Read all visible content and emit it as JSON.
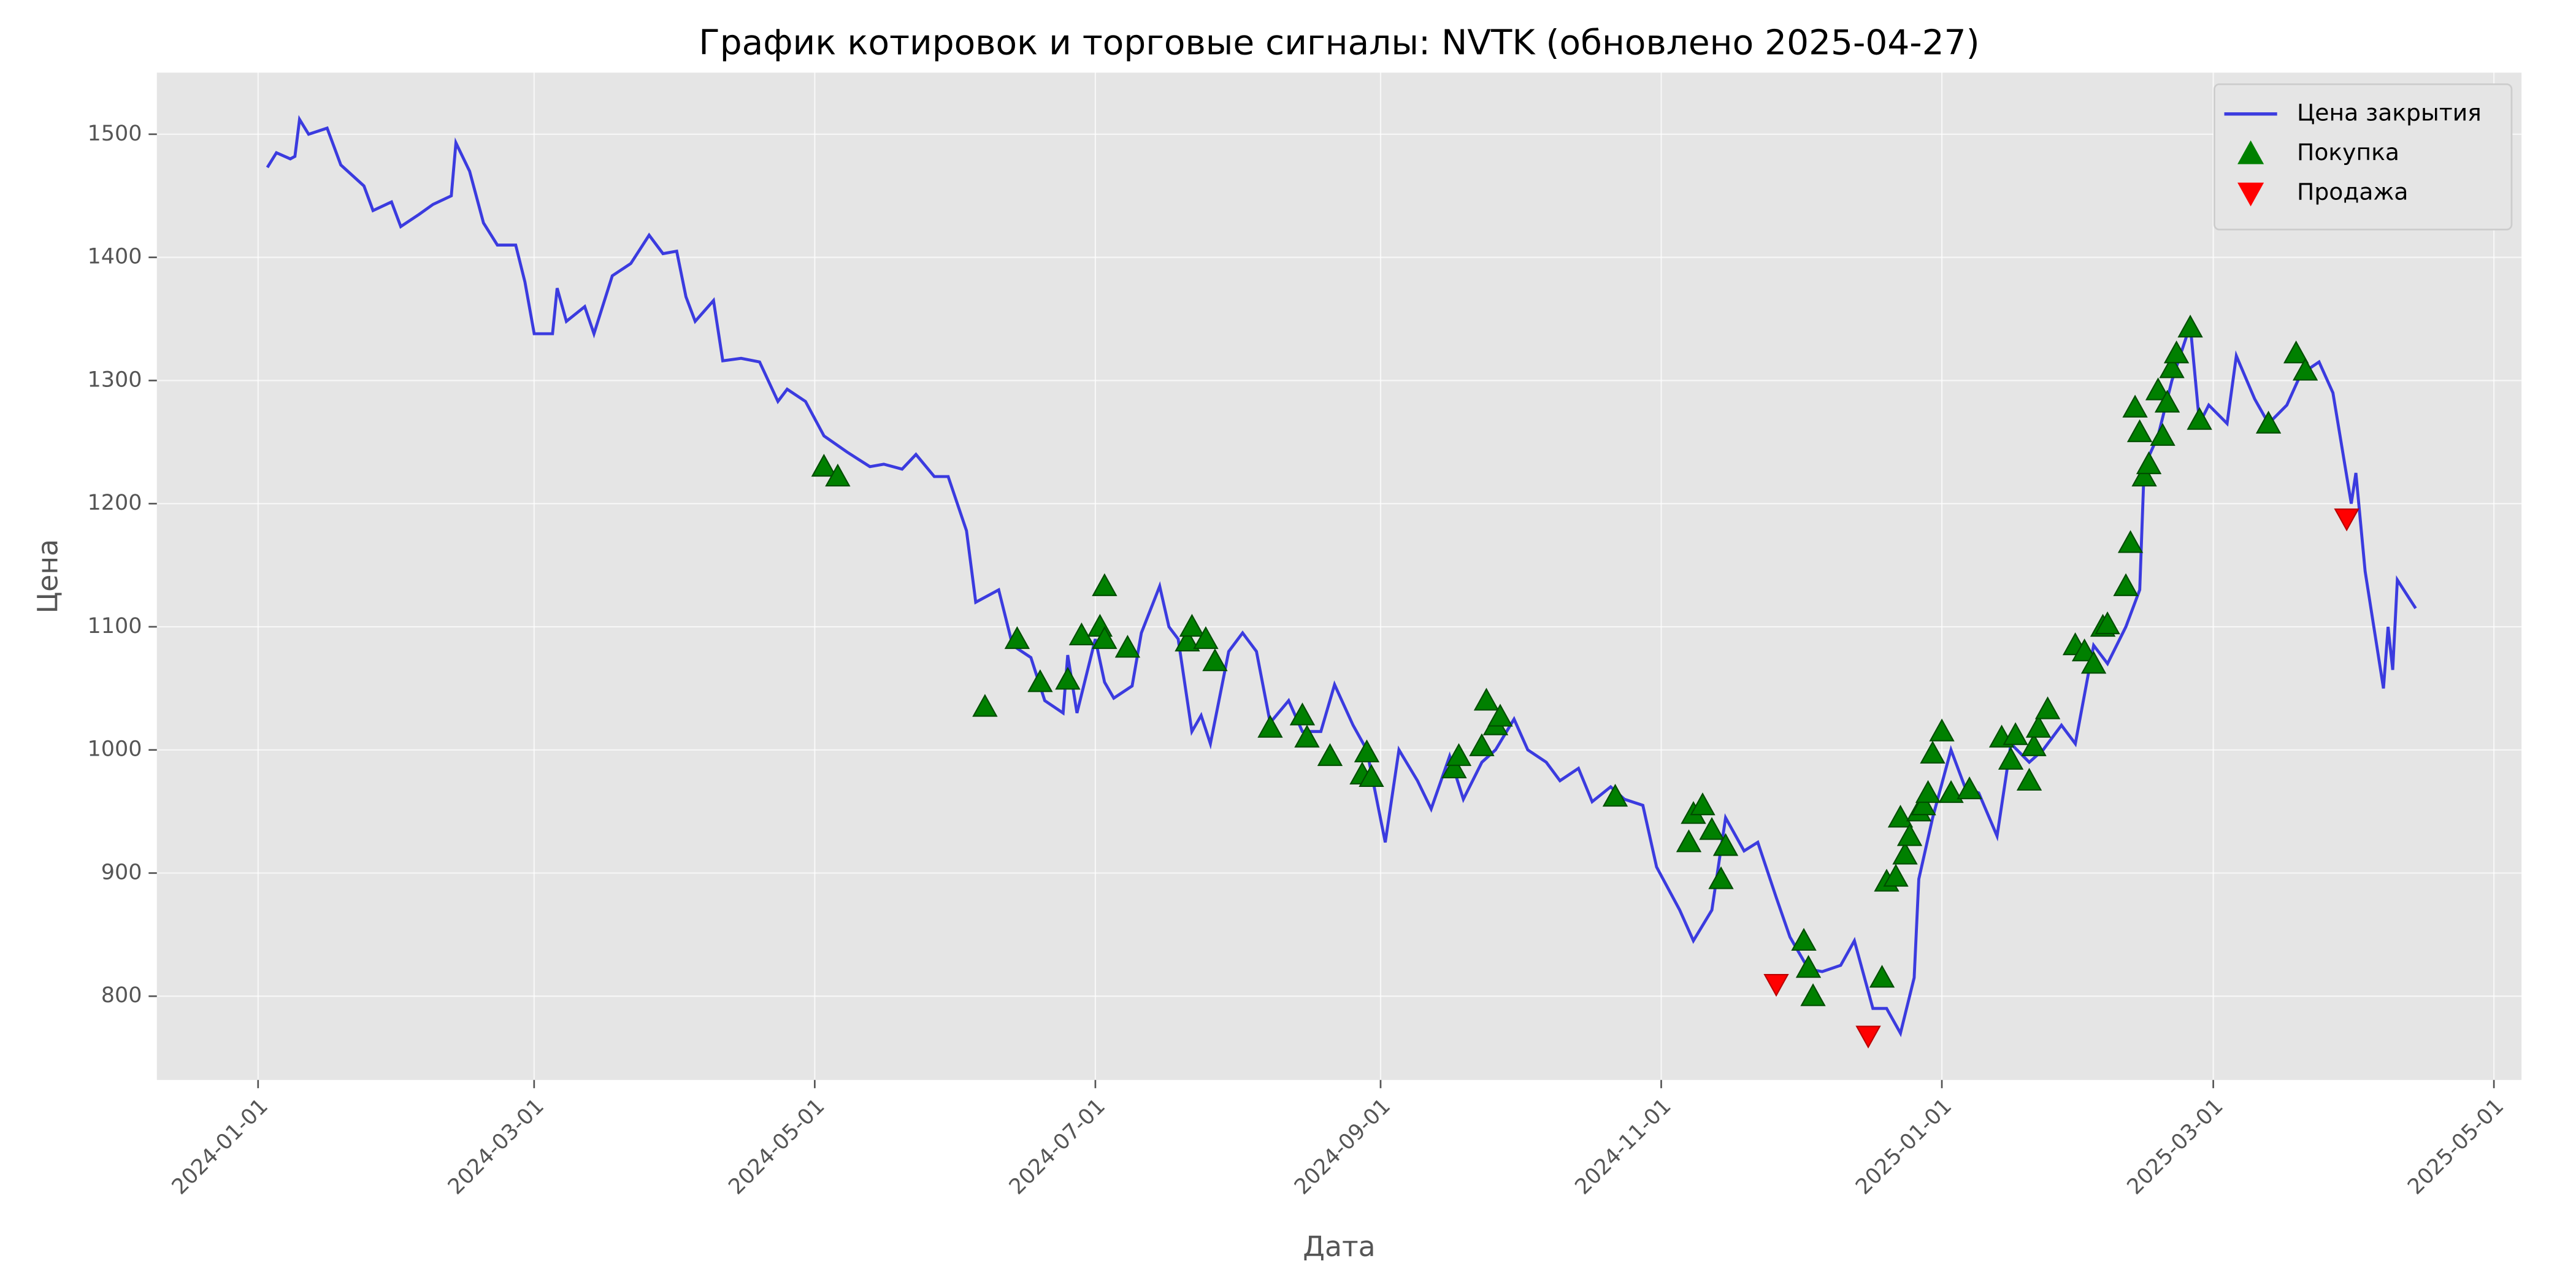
{
  "chart_data": {
    "type": "line",
    "title": "График котировок и торговые сигналы: NVTK (обновлено 2025-04-27)",
    "x_label": "Дата",
    "y_label": "Цена",
    "xlim": [
      "2023-12-10",
      "2025-05-07"
    ],
    "xticks": [
      "2024-01-01",
      "2024-03-01",
      "2024-05-01",
      "2024-07-01",
      "2024-09-01",
      "2024-11-01",
      "2025-01-01",
      "2025-03-01",
      "2025-05-01"
    ],
    "ylim": [
      732,
      1550
    ],
    "yticks": [
      800,
      900,
      1000,
      1100,
      1200,
      1300,
      1400,
      1500
    ],
    "grid": true,
    "legend": "upper right",
    "series": [
      {
        "name": "Цена закрытия",
        "type": "line",
        "color": "#3b3bdf",
        "x": [
          "2024-01-03",
          "2024-01-05",
          "2024-01-08",
          "2024-01-09",
          "2024-01-10",
          "2024-01-12",
          "2024-01-16",
          "2024-01-19",
          "2024-01-24",
          "2024-01-26",
          "2024-01-30",
          "2024-02-01",
          "2024-02-05",
          "2024-02-08",
          "2024-02-12",
          "2024-02-13",
          "2024-02-16",
          "2024-02-19",
          "2024-02-22",
          "2024-02-26",
          "2024-02-28",
          "2024-03-01",
          "2024-03-05",
          "2024-03-06",
          "2024-03-08",
          "2024-03-12",
          "2024-03-14",
          "2024-03-18",
          "2024-03-22",
          "2024-03-26",
          "2024-03-29",
          "2024-04-01",
          "2024-04-03",
          "2024-04-05",
          "2024-04-09",
          "2024-04-11",
          "2024-04-15",
          "2024-04-19",
          "2024-04-23",
          "2024-04-25",
          "2024-04-29",
          "2024-05-03",
          "2024-05-08",
          "2024-05-13",
          "2024-05-16",
          "2024-05-20",
          "2024-05-23",
          "2024-05-27",
          "2024-05-30",
          "2024-06-03",
          "2024-06-05",
          "2024-06-10",
          "2024-06-13",
          "2024-06-17",
          "2024-06-20",
          "2024-06-24",
          "2024-06-25",
          "2024-06-27",
          "2024-07-01",
          "2024-07-03",
          "2024-07-05",
          "2024-07-09",
          "2024-07-11",
          "2024-07-15",
          "2024-07-17",
          "2024-07-19",
          "2024-07-22",
          "2024-07-24",
          "2024-07-26",
          "2024-07-30",
          "2024-08-02",
          "2024-08-05",
          "2024-08-08",
          "2024-08-12",
          "2024-08-15",
          "2024-08-19",
          "2024-08-22",
          "2024-08-26",
          "2024-08-29",
          "2024-09-02",
          "2024-09-05",
          "2024-09-09",
          "2024-09-12",
          "2024-09-16",
          "2024-09-19",
          "2024-09-23",
          "2024-09-26",
          "2024-09-30",
          "2024-10-03",
          "2024-10-07",
          "2024-10-10",
          "2024-10-14",
          "2024-10-17",
          "2024-10-21",
          "2024-10-24",
          "2024-10-28",
          "2024-10-31",
          "2024-11-05",
          "2024-11-08",
          "2024-11-12",
          "2024-11-15",
          "2024-11-19",
          "2024-11-22",
          "2024-11-26",
          "2024-11-29",
          "2024-12-03",
          "2024-12-06",
          "2024-12-10",
          "2024-12-13",
          "2024-12-17",
          "2024-12-20",
          "2024-12-23",
          "2024-12-26",
          "2024-12-27",
          "2024-12-30",
          "2025-01-03",
          "2025-01-06",
          "2025-01-09",
          "2025-01-13",
          "2025-01-16",
          "2025-01-20",
          "2025-01-23",
          "2025-01-27",
          "2025-01-30",
          "2025-02-03",
          "2025-02-06",
          "2025-02-10",
          "2025-02-13",
          "2025-02-14",
          "2025-02-17",
          "2025-02-20",
          "2025-02-24",
          "2025-02-26",
          "2025-02-28",
          "2025-03-04",
          "2025-03-06",
          "2025-03-10",
          "2025-03-13",
          "2025-03-17",
          "2025-03-20",
          "2025-03-24",
          "2025-03-27",
          "2025-03-31",
          "2025-04-01",
          "2025-04-03",
          "2025-04-07",
          "2025-04-08",
          "2025-04-09",
          "2025-04-10",
          "2025-04-14"
        ],
        "values": [
          1473,
          1485,
          1480,
          1482,
          1512,
          1500,
          1505,
          1475,
          1458,
          1438,
          1445,
          1425,
          1435,
          1443,
          1450,
          1493,
          1470,
          1428,
          1410,
          1410,
          1380,
          1338,
          1338,
          1375,
          1348,
          1360,
          1338,
          1385,
          1395,
          1418,
          1403,
          1405,
          1368,
          1348,
          1365,
          1316,
          1318,
          1315,
          1283,
          1293,
          1283,
          1255,
          1242,
          1230,
          1232,
          1228,
          1240,
          1222,
          1222,
          1178,
          1120,
          1130,
          1085,
          1075,
          1040,
          1030,
          1077,
          1030,
          1090,
          1055,
          1042,
          1052,
          1095,
          1133,
          1100,
          1090,
          1015,
          1028,
          1005,
          1080,
          1095,
          1080,
          1022,
          1040,
          1015,
          1015,
          1053,
          1020,
          1000,
          925,
          1000,
          975,
          952,
          995,
          960,
          990,
          1000,
          1025,
          1000,
          990,
          975,
          985,
          958,
          970,
          960,
          955,
          905,
          870,
          845,
          870,
          945,
          918,
          925,
          880,
          848,
          822,
          820,
          825,
          845,
          790,
          790,
          770,
          815,
          895,
          945,
          1000,
          970,
          965,
          930,
          1005,
          990,
          1000,
          1020,
          1005,
          1085,
          1070,
          1100,
          1130,
          1230,
          1255,
          1300,
          1345,
          1265,
          1280,
          1265,
          1320,
          1285,
          1265,
          1280,
          1305,
          1315,
          1290,
          1200,
          1225,
          1145,
          1050,
          1100,
          1065,
          1138,
          1115
        ]
      },
      {
        "name": "Покупка",
        "type": "scatter",
        "marker": "up",
        "color": "#008000",
        "x": [
          "2024-05-03",
          "2024-05-06",
          "2024-06-07",
          "2024-06-14",
          "2024-06-19",
          "2024-06-25",
          "2024-06-28",
          "2024-07-02",
          "2024-07-03",
          "2024-07-03",
          "2024-07-08",
          "2024-07-21",
          "2024-07-22",
          "2024-07-25",
          "2024-07-27",
          "2024-08-08",
          "2024-08-15",
          "2024-08-16",
          "2024-08-21",
          "2024-08-28",
          "2024-08-29",
          "2024-08-30",
          "2024-09-17",
          "2024-09-18",
          "2024-09-23",
          "2024-09-24",
          "2024-09-26",
          "2024-09-27",
          "2024-10-22",
          "2024-11-07",
          "2024-11-08",
          "2024-11-10",
          "2024-11-12",
          "2024-11-14",
          "2024-11-15",
          "2024-12-02",
          "2024-12-03",
          "2024-12-04",
          "2024-12-19",
          "2024-12-20",
          "2024-12-22",
          "2024-12-23",
          "2024-12-24",
          "2024-12-25",
          "2024-12-27",
          "2024-12-28",
          "2024-12-29",
          "2024-12-30",
          "2025-01-01",
          "2025-01-03",
          "2025-01-07",
          "2025-01-14",
          "2025-01-16",
          "2025-01-17",
          "2025-01-20",
          "2025-01-21",
          "2025-01-22",
          "2025-01-24",
          "2025-01-30",
          "2025-02-01",
          "2025-02-03",
          "2025-02-05",
          "2025-02-06",
          "2025-02-10",
          "2025-02-11",
          "2025-02-12",
          "2025-02-13",
          "2025-02-14",
          "2025-02-15",
          "2025-02-17",
          "2025-02-18",
          "2025-02-19",
          "2025-02-20",
          "2025-02-21",
          "2025-02-24",
          "2025-02-26",
          "2025-03-13",
          "2025-03-19",
          "2025-03-21"
        ],
        "values": [
          1230,
          1222,
          1035,
          1090,
          1055,
          1057,
          1093,
          1100,
          1133,
          1090,
          1083,
          1088,
          1100,
          1090,
          1072,
          1018,
          1028,
          1010,
          995,
          980,
          998,
          978,
          985,
          995,
          1003,
          1040,
          1020,
          1027,
          962,
          925,
          948,
          955,
          935,
          895,
          922,
          845,
          823,
          800,
          815,
          893,
          897,
          945,
          915,
          930,
          950,
          955,
          965,
          997,
          1015,
          965,
          968,
          1010,
          992,
          1012,
          975,
          1003,
          1018,
          1033,
          1085,
          1080,
          1070,
          1100,
          1102,
          1133,
          1168,
          1278,
          1258,
          1222,
          1232,
          1292,
          1255,
          1282,
          1310,
          1322,
          1343,
          1268,
          1265,
          1322,
          1308
        ]
      },
      {
        "name": "Продажа",
        "type": "scatter",
        "marker": "down",
        "color": "#ff0000",
        "x": [
          "2024-11-26",
          "2024-12-16",
          "2025-03-30"
        ],
        "values": [
          810,
          768,
          1188
        ]
      }
    ]
  }
}
